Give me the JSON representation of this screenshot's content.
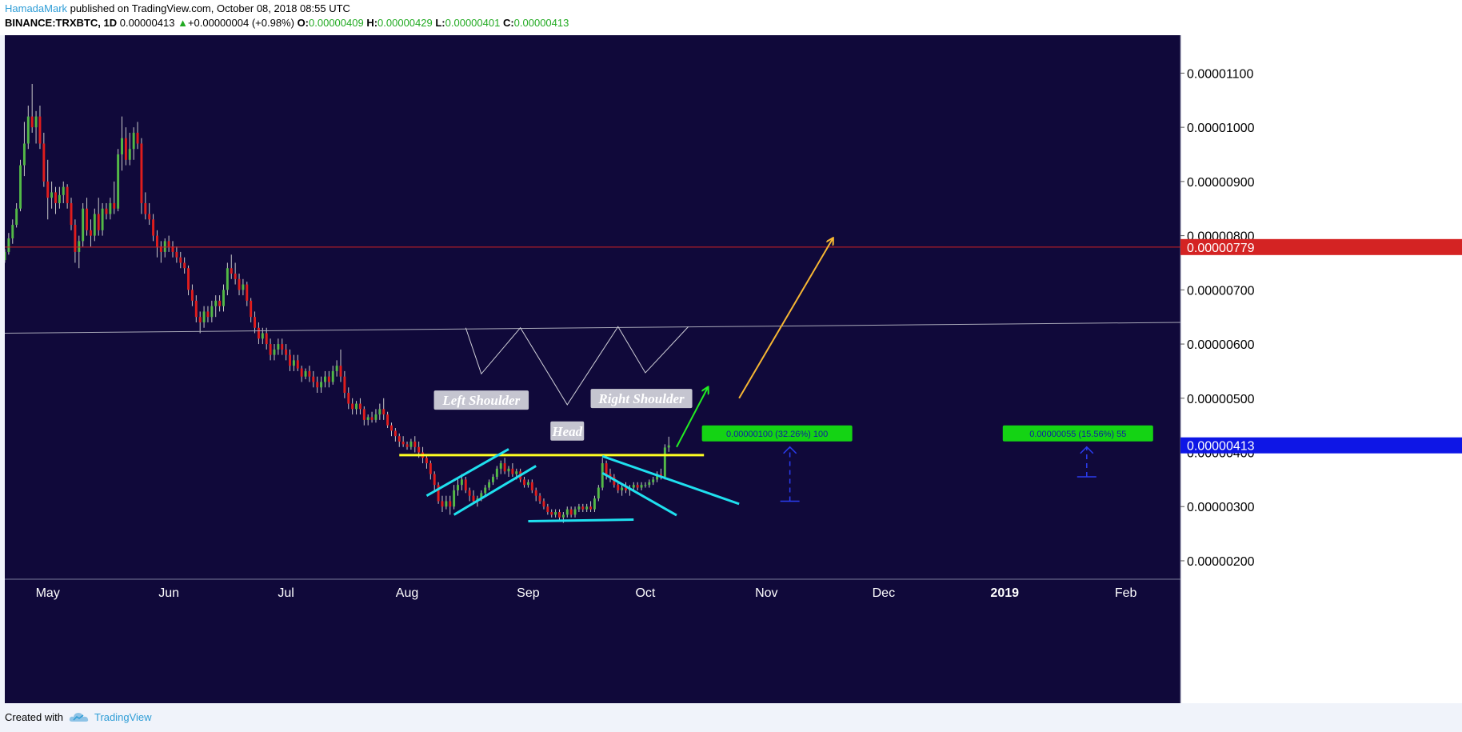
{
  "header": {
    "author": "HamadaMark",
    "published_text": "published on TradingView.com, October 08, 2018 08:55 UTC",
    "symbol": "BINANCE:TRXBTC, 1D",
    "last": "0.00000413",
    "change": "+0.00000004 (+0.98%)",
    "o_label": "O:",
    "o_val": "0.00000409",
    "h_label": "H:",
    "h_val": "0.00000429",
    "l_label": "L:",
    "l_val": "0.00000401",
    "c_label": "C:",
    "c_val": "0.00000413"
  },
  "footer": {
    "created_with": "Created with",
    "brand": "TradingView"
  },
  "colors": {
    "background": "#10093a",
    "candle_up": "#53b947",
    "candle_down": "#e01d1d",
    "neckline": "#ffff22",
    "channel": "#1fe0ef",
    "arrow_green": "#22ee22",
    "arrow_orange": "#f7b733",
    "price_line": "#d42323",
    "last_price_bg": "#0e16e6",
    "target_bg": "#14d314"
  },
  "chart_data": {
    "type": "candlestick",
    "symbol": "BINANCE:TRXBTC",
    "interval": "1D",
    "y_ticks": [
      "0.00001100",
      "0.00001000",
      "0.00000900",
      "0.00000800",
      "0.00000700",
      "0.00000600",
      "0.00000500",
      "0.00000400",
      "0.00000300",
      "0.00000200"
    ],
    "y_tick_values": [
      1.1e-05,
      1e-05,
      9e-06,
      8e-06,
      7e-06,
      6e-06,
      5e-06,
      4e-06,
      3e-06,
      2e-06
    ],
    "x_labels": [
      {
        "text": "May",
        "date": "2018-05-01",
        "bold": false
      },
      {
        "text": "Jun",
        "date": "2018-06-01",
        "bold": false
      },
      {
        "text": "Jul",
        "date": "2018-07-01",
        "bold": false
      },
      {
        "text": "Aug",
        "date": "2018-08-01",
        "bold": false
      },
      {
        "text": "Sep",
        "date": "2018-09-01",
        "bold": false
      },
      {
        "text": "Oct",
        "date": "2018-10-01",
        "bold": false
      },
      {
        "text": "Nov",
        "date": "2018-11-01",
        "bold": false
      },
      {
        "text": "Dec",
        "date": "2018-12-01",
        "bold": false
      },
      {
        "text": "2019",
        "date": "2019-01-01",
        "bold": true
      },
      {
        "text": "Feb",
        "date": "2019-02-01",
        "bold": false
      }
    ],
    "x_range": [
      "2018-04-20",
      "2019-02-15"
    ],
    "y_range": [
      1.66e-06,
      1.17e-05
    ],
    "ohlc": [
      [
        "2018-04-20",
        7.55,
        7.75,
        7.5,
        7.7
      ],
      [
        "2018-04-21",
        7.7,
        8.05,
        7.65,
        7.95
      ],
      [
        "2018-04-22",
        7.95,
        8.3,
        7.85,
        8.2
      ],
      [
        "2018-04-23",
        8.2,
        8.6,
        8.15,
        8.5
      ],
      [
        "2018-04-24",
        8.5,
        9.4,
        8.45,
        9.3
      ],
      [
        "2018-04-25",
        9.3,
        10.1,
        9.1,
        9.7
      ],
      [
        "2018-04-26",
        9.7,
        10.4,
        9.6,
        10.2
      ],
      [
        "2018-04-27",
        10.2,
        10.8,
        9.9,
        10.0
      ],
      [
        "2018-04-28",
        10.0,
        10.3,
        9.7,
        10.2
      ],
      [
        "2018-04-29",
        10.2,
        10.4,
        9.6,
        9.7
      ],
      [
        "2018-04-30",
        9.7,
        9.9,
        8.9,
        9.0
      ],
      [
        "2018-05-01",
        9.0,
        9.4,
        8.3,
        8.7
      ],
      [
        "2018-05-02",
        8.7,
        9.0,
        8.5,
        8.8
      ],
      [
        "2018-05-03",
        8.8,
        8.9,
        8.4,
        8.6
      ],
      [
        "2018-05-04",
        8.6,
        8.9,
        8.5,
        8.75
      ],
      [
        "2018-05-05",
        8.75,
        9.0,
        8.6,
        8.9
      ],
      [
        "2018-05-06",
        8.9,
        8.95,
        8.5,
        8.6
      ],
      [
        "2018-05-07",
        8.6,
        8.7,
        8.1,
        8.2
      ],
      [
        "2018-05-08",
        8.2,
        8.3,
        7.5,
        7.7
      ],
      [
        "2018-05-09",
        7.7,
        8.0,
        7.4,
        7.9
      ],
      [
        "2018-05-10",
        7.9,
        8.6,
        7.8,
        8.5
      ],
      [
        "2018-05-11",
        8.5,
        8.7,
        8.0,
        8.1
      ],
      [
        "2018-05-12",
        8.1,
        8.3,
        7.8,
        8.0
      ],
      [
        "2018-05-13",
        8.0,
        8.5,
        7.9,
        8.4
      ],
      [
        "2018-05-14",
        8.4,
        8.7,
        8.0,
        8.1
      ],
      [
        "2018-05-15",
        8.1,
        8.6,
        8.0,
        8.5
      ],
      [
        "2018-05-16",
        8.5,
        8.6,
        8.3,
        8.4
      ],
      [
        "2018-05-17",
        8.4,
        8.7,
        8.3,
        8.6
      ],
      [
        "2018-05-18",
        8.6,
        9.0,
        8.4,
        8.5
      ],
      [
        "2018-05-19",
        8.5,
        9.6,
        8.45,
        9.5
      ],
      [
        "2018-05-20",
        9.5,
        10.2,
        9.2,
        9.8
      ],
      [
        "2018-05-21",
        9.8,
        10.0,
        9.3,
        9.4
      ],
      [
        "2018-05-22",
        9.4,
        9.9,
        9.3,
        9.6
      ],
      [
        "2018-05-23",
        9.6,
        10.0,
        9.4,
        9.9
      ],
      [
        "2018-05-24",
        9.9,
        10.1,
        9.6,
        9.7
      ],
      [
        "2018-05-25",
        9.7,
        9.8,
        8.4,
        8.6
      ],
      [
        "2018-05-26",
        8.6,
        8.8,
        8.3,
        8.4
      ],
      [
        "2018-05-27",
        8.4,
        8.6,
        8.2,
        8.3
      ],
      [
        "2018-05-28",
        8.3,
        8.4,
        7.9,
        8.0
      ],
      [
        "2018-05-29",
        8.0,
        8.1,
        7.6,
        7.8
      ],
      [
        "2018-05-30",
        7.8,
        7.9,
        7.5,
        7.7
      ],
      [
        "2018-05-31",
        7.7,
        7.95,
        7.6,
        7.9
      ],
      [
        "2018-06-01",
        7.9,
        8.0,
        7.7,
        7.8
      ],
      [
        "2018-06-02",
        7.8,
        7.9,
        7.6,
        7.7
      ],
      [
        "2018-06-03",
        7.7,
        7.8,
        7.5,
        7.6
      ],
      [
        "2018-06-04",
        7.6,
        7.7,
        7.4,
        7.5
      ],
      [
        "2018-06-05",
        7.5,
        7.6,
        7.3,
        7.4
      ],
      [
        "2018-06-06",
        7.4,
        7.45,
        6.9,
        7.0
      ],
      [
        "2018-06-07",
        7.0,
        7.1,
        6.7,
        6.8
      ],
      [
        "2018-06-08",
        6.8,
        6.9,
        6.4,
        6.5
      ],
      [
        "2018-06-09",
        6.5,
        6.6,
        6.2,
        6.4
      ],
      [
        "2018-06-10",
        6.4,
        6.7,
        6.3,
        6.6
      ],
      [
        "2018-06-11",
        6.6,
        6.7,
        6.4,
        6.5
      ],
      [
        "2018-06-12",
        6.5,
        6.8,
        6.4,
        6.7
      ],
      [
        "2018-06-13",
        6.7,
        6.9,
        6.5,
        6.8
      ],
      [
        "2018-06-14",
        6.8,
        6.9,
        6.6,
        6.7
      ],
      [
        "2018-06-15",
        6.7,
        7.1,
        6.6,
        7.0
      ],
      [
        "2018-06-16",
        7.0,
        7.5,
        6.9,
        7.4
      ],
      [
        "2018-06-17",
        7.4,
        7.65,
        7.2,
        7.3
      ],
      [
        "2018-06-18",
        7.3,
        7.5,
        7.1,
        7.2
      ],
      [
        "2018-06-19",
        7.2,
        7.3,
        6.9,
        7.0
      ],
      [
        "2018-06-20",
        7.0,
        7.2,
        6.9,
        7.1
      ],
      [
        "2018-06-21",
        7.1,
        7.15,
        6.7,
        6.8
      ],
      [
        "2018-06-22",
        6.8,
        6.85,
        6.4,
        6.5
      ],
      [
        "2018-06-23",
        6.5,
        6.6,
        6.2,
        6.3
      ],
      [
        "2018-06-24",
        6.3,
        6.4,
        6.0,
        6.1
      ],
      [
        "2018-06-25",
        6.1,
        6.3,
        6.0,
        6.2
      ],
      [
        "2018-06-26",
        6.2,
        6.3,
        5.9,
        6.0
      ],
      [
        "2018-06-27",
        6.0,
        6.1,
        5.7,
        5.8
      ],
      [
        "2018-06-28",
        5.8,
        6.0,
        5.7,
        5.9
      ],
      [
        "2018-06-29",
        5.9,
        6.1,
        5.8,
        6.0
      ],
      [
        "2018-06-30",
        6.0,
        6.1,
        5.8,
        5.9
      ],
      [
        "2018-07-01",
        5.9,
        6.0,
        5.7,
        5.8
      ],
      [
        "2018-07-02",
        5.8,
        5.9,
        5.5,
        5.6
      ],
      [
        "2018-07-03",
        5.6,
        5.8,
        5.5,
        5.7
      ],
      [
        "2018-07-04",
        5.7,
        5.8,
        5.5,
        5.55
      ],
      [
        "2018-07-05",
        5.55,
        5.6,
        5.3,
        5.4
      ],
      [
        "2018-07-06",
        5.4,
        5.55,
        5.35,
        5.5
      ],
      [
        "2018-07-07",
        5.5,
        5.6,
        5.3,
        5.4
      ],
      [
        "2018-07-08",
        5.4,
        5.5,
        5.2,
        5.3
      ],
      [
        "2018-07-09",
        5.3,
        5.4,
        5.1,
        5.2
      ],
      [
        "2018-07-10",
        5.2,
        5.4,
        5.1,
        5.3
      ],
      [
        "2018-07-11",
        5.3,
        5.5,
        5.2,
        5.4
      ],
      [
        "2018-07-12",
        5.4,
        5.5,
        5.2,
        5.3
      ],
      [
        "2018-07-13",
        5.3,
        5.6,
        5.25,
        5.5
      ],
      [
        "2018-07-14",
        5.5,
        5.7,
        5.4,
        5.6
      ],
      [
        "2018-07-15",
        5.6,
        5.9,
        5.3,
        5.4
      ],
      [
        "2018-07-16",
        5.4,
        5.5,
        5.0,
        5.1
      ],
      [
        "2018-07-17",
        5.1,
        5.2,
        4.8,
        4.9
      ],
      [
        "2018-07-18",
        4.9,
        5.0,
        4.7,
        4.8
      ],
      [
        "2018-07-19",
        4.8,
        4.95,
        4.7,
        4.9
      ],
      [
        "2018-07-20",
        4.9,
        5.0,
        4.7,
        4.8
      ],
      [
        "2018-07-21",
        4.8,
        4.85,
        4.5,
        4.6
      ],
      [
        "2018-07-22",
        4.6,
        4.7,
        4.5,
        4.65
      ],
      [
        "2018-07-23",
        4.65,
        4.75,
        4.55,
        4.6
      ],
      [
        "2018-07-24",
        4.6,
        4.8,
        4.55,
        4.7
      ],
      [
        "2018-07-25",
        4.7,
        4.9,
        4.6,
        4.8
      ],
      [
        "2018-07-26",
        4.8,
        5.0,
        4.6,
        4.7
      ],
      [
        "2018-07-27",
        4.7,
        4.75,
        4.45,
        4.5
      ],
      [
        "2018-07-28",
        4.5,
        4.55,
        4.3,
        4.4
      ],
      [
        "2018-07-29",
        4.4,
        4.45,
        4.2,
        4.3
      ],
      [
        "2018-07-30",
        4.3,
        4.35,
        4.1,
        4.2
      ],
      [
        "2018-07-31",
        4.2,
        4.3,
        4.1,
        4.15
      ],
      [
        "2018-08-01",
        4.15,
        4.2,
        4.05,
        4.1
      ],
      [
        "2018-08-02",
        4.1,
        4.25,
        4.05,
        4.2
      ],
      [
        "2018-08-03",
        4.2,
        4.3,
        4.0,
        4.1
      ],
      [
        "2018-08-04",
        4.1,
        4.2,
        3.9,
        4.0
      ],
      [
        "2018-08-05",
        4.0,
        4.1,
        3.8,
        3.9
      ],
      [
        "2018-08-06",
        3.9,
        3.95,
        3.7,
        3.8
      ],
      [
        "2018-08-07",
        3.8,
        3.85,
        3.5,
        3.6
      ],
      [
        "2018-08-08",
        3.6,
        3.65,
        3.3,
        3.4
      ],
      [
        "2018-08-09",
        3.4,
        3.45,
        3.05,
        3.1
      ],
      [
        "2018-08-10",
        3.1,
        3.2,
        2.9,
        3.0
      ],
      [
        "2018-08-11",
        3.0,
        3.2,
        2.95,
        3.1
      ],
      [
        "2018-08-12",
        3.1,
        3.2,
        2.85,
        3.0
      ],
      [
        "2018-08-13",
        3.0,
        3.4,
        2.95,
        3.3
      ],
      [
        "2018-08-14",
        3.3,
        3.5,
        3.2,
        3.4
      ],
      [
        "2018-08-15",
        3.4,
        3.6,
        3.3,
        3.5
      ],
      [
        "2018-08-16",
        3.5,
        3.55,
        3.25,
        3.3
      ],
      [
        "2018-08-17",
        3.3,
        3.35,
        3.1,
        3.2
      ],
      [
        "2018-08-18",
        3.2,
        3.3,
        3.05,
        3.1
      ],
      [
        "2018-08-19",
        3.1,
        3.2,
        3.0,
        3.15
      ],
      [
        "2018-08-20",
        3.15,
        3.3,
        3.1,
        3.25
      ],
      [
        "2018-08-21",
        3.25,
        3.4,
        3.2,
        3.35
      ],
      [
        "2018-08-22",
        3.35,
        3.5,
        3.3,
        3.45
      ],
      [
        "2018-08-23",
        3.45,
        3.6,
        3.4,
        3.55
      ],
      [
        "2018-08-24",
        3.55,
        3.75,
        3.5,
        3.7
      ],
      [
        "2018-08-25",
        3.7,
        3.85,
        3.6,
        3.8
      ],
      [
        "2018-08-26",
        3.8,
        3.9,
        3.6,
        3.65
      ],
      [
        "2018-08-27",
        3.65,
        3.75,
        3.55,
        3.7
      ],
      [
        "2018-08-28",
        3.7,
        3.8,
        3.55,
        3.6
      ],
      [
        "2018-08-29",
        3.6,
        3.7,
        3.5,
        3.65
      ],
      [
        "2018-08-30",
        3.65,
        3.7,
        3.45,
        3.5
      ],
      [
        "2018-08-31",
        3.5,
        3.55,
        3.35,
        3.4
      ],
      [
        "2018-09-01",
        3.4,
        3.5,
        3.35,
        3.45
      ],
      [
        "2018-09-02",
        3.45,
        3.5,
        3.25,
        3.3
      ],
      [
        "2018-09-03",
        3.3,
        3.35,
        3.1,
        3.2
      ],
      [
        "2018-09-04",
        3.2,
        3.25,
        3.05,
        3.1
      ],
      [
        "2018-09-05",
        3.1,
        3.15,
        2.95,
        3.0
      ],
      [
        "2018-09-06",
        3.0,
        3.05,
        2.85,
        2.9
      ],
      [
        "2018-09-07",
        2.9,
        2.95,
        2.8,
        2.85
      ],
      [
        "2018-09-08",
        2.85,
        2.95,
        2.8,
        2.9
      ],
      [
        "2018-09-09",
        2.9,
        2.95,
        2.75,
        2.8
      ],
      [
        "2018-09-10",
        2.8,
        2.9,
        2.7,
        2.85
      ],
      [
        "2018-09-11",
        2.85,
        3.0,
        2.8,
        2.95
      ],
      [
        "2018-09-12",
        2.95,
        3.0,
        2.8,
        2.85
      ],
      [
        "2018-09-13",
        2.85,
        3.0,
        2.8,
        2.95
      ],
      [
        "2018-09-14",
        2.95,
        3.05,
        2.9,
        3.0
      ],
      [
        "2018-09-15",
        3.0,
        3.05,
        2.9,
        2.95
      ],
      [
        "2018-09-16",
        2.95,
        3.05,
        2.9,
        3.0
      ],
      [
        "2018-09-17",
        3.0,
        3.1,
        2.9,
        2.95
      ],
      [
        "2018-09-18",
        2.95,
        3.2,
        2.9,
        3.15
      ],
      [
        "2018-09-19",
        3.15,
        3.4,
        3.1,
        3.35
      ],
      [
        "2018-09-20",
        3.35,
        3.9,
        3.3,
        3.8
      ],
      [
        "2018-09-21",
        3.8,
        3.85,
        3.5,
        3.6
      ],
      [
        "2018-09-22",
        3.6,
        3.7,
        3.45,
        3.55
      ],
      [
        "2018-09-23",
        3.55,
        3.6,
        3.35,
        3.4
      ],
      [
        "2018-09-24",
        3.4,
        3.45,
        3.25,
        3.3
      ],
      [
        "2018-09-25",
        3.3,
        3.4,
        3.2,
        3.35
      ],
      [
        "2018-09-26",
        3.35,
        3.45,
        3.25,
        3.3
      ],
      [
        "2018-09-27",
        3.3,
        3.4,
        3.2,
        3.35
      ],
      [
        "2018-09-28",
        3.35,
        3.45,
        3.3,
        3.4
      ],
      [
        "2018-09-29",
        3.4,
        3.45,
        3.3,
        3.35
      ],
      [
        "2018-09-30",
        3.35,
        3.45,
        3.3,
        3.4
      ],
      [
        "2018-10-01",
        3.4,
        3.45,
        3.35,
        3.4
      ],
      [
        "2018-10-02",
        3.4,
        3.5,
        3.35,
        3.45
      ],
      [
        "2018-10-03",
        3.45,
        3.55,
        3.4,
        3.5
      ],
      [
        "2018-10-04",
        3.5,
        3.65,
        3.45,
        3.6
      ],
      [
        "2018-10-05",
        3.6,
        3.7,
        3.5,
        3.55
      ],
      [
        "2018-10-06",
        3.55,
        4.15,
        3.5,
        4.09
      ],
      [
        "2018-10-07",
        4.09,
        4.29,
        4.01,
        4.13
      ]
    ],
    "ohlc_unit_note": "prices in units of 1e-6 BTC",
    "annotations": {
      "labels": [
        {
          "text": "Left Shoulder",
          "date": "2018-08-20",
          "price": 4.95
        },
        {
          "text": "Head",
          "date": "2018-09-11",
          "price": 4.38
        },
        {
          "text": "Right Shoulder",
          "date": "2018-09-30",
          "price": 4.98
        }
      ],
      "horizontal_lines": [
        {
          "name": "resistance",
          "price": 7.79,
          "label": "0.00000779"
        }
      ],
      "last_price_label": "0.00000413",
      "targets": [
        {
          "text": "0.00000100 (32.26%) 100",
          "date": "2018-11-07",
          "from": 3.1,
          "to": 4.1
        },
        {
          "text": "0.00000055 (15.56%) 55",
          "date": "2019-01-22",
          "from": 3.55,
          "to": 4.1
        }
      ]
    },
    "grid": false,
    "legend": "none"
  }
}
